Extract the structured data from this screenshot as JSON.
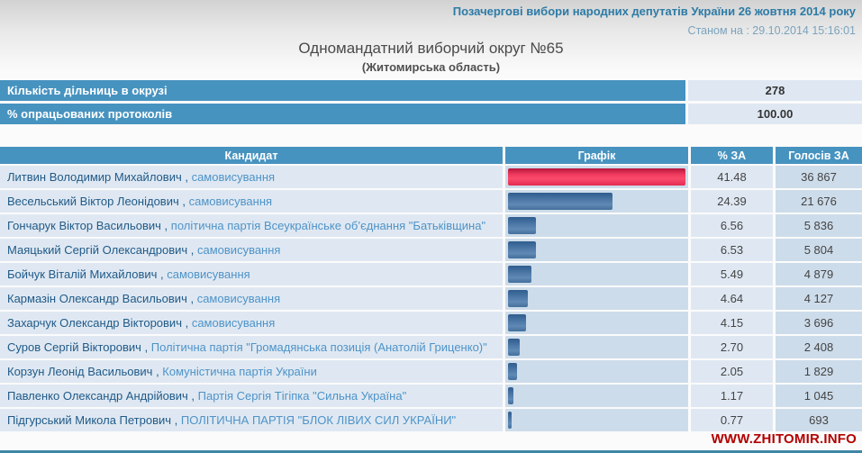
{
  "header": {
    "election_title": "Позачергові вибори народних депутатів України 26 жовтня 2014 року",
    "as_of": "Станом на : 29.10.2014 15:16:01",
    "district_title": "Одномандатний виборчий округ №65",
    "region_subtitle": "(Житомирська область)"
  },
  "summary": {
    "rows": [
      {
        "label": "Кількість дільниць в окрузі",
        "value": "278"
      },
      {
        "label": "% опрацьованих протоколів",
        "value": "100.00"
      }
    ]
  },
  "results_table": {
    "columns": [
      "Кандидат",
      "Графік",
      "% ЗА",
      "Голосів ЗА"
    ],
    "separator": " , ",
    "max_percent": 41.48,
    "rows": [
      {
        "name": "Литвин Володимир Михайлович",
        "party": "самовисування",
        "percent": "41.48",
        "votes": "36 867",
        "bar_color": "red"
      },
      {
        "name": "Весельський Віктор Леонідович",
        "party": "самовисування",
        "percent": "24.39",
        "votes": "21 676",
        "bar_color": "blue"
      },
      {
        "name": "Гончарук Віктор Васильович",
        "party": "політична партія Всеукраїнське об’єднання \"Батьківщина\"",
        "percent": "6.56",
        "votes": "5 836",
        "bar_color": "blue"
      },
      {
        "name": "Маяцький Сергій Олександрович",
        "party": "самовисування",
        "percent": "6.53",
        "votes": "5 804",
        "bar_color": "blue"
      },
      {
        "name": "Бойчук Віталій Михайлович",
        "party": "самовисування",
        "percent": "5.49",
        "votes": "4 879",
        "bar_color": "blue"
      },
      {
        "name": "Кармазін Олександр Васильович",
        "party": "самовисування",
        "percent": "4.64",
        "votes": "4 127",
        "bar_color": "blue"
      },
      {
        "name": "Захарчук Олександр Вікторович",
        "party": "самовисування",
        "percent": "4.15",
        "votes": "3 696",
        "bar_color": "blue"
      },
      {
        "name": "Суров Сергій Вікторович",
        "party": "Політична партія \"Громадянська позиція (Анатолій Гриценко)\"",
        "percent": "2.70",
        "votes": "2 408",
        "bar_color": "blue"
      },
      {
        "name": "Корзун Леонід Васильович",
        "party": "Комуністична партія України",
        "percent": "2.05",
        "votes": "1 829",
        "bar_color": "blue"
      },
      {
        "name": "Павленко Олександр Андрійович",
        "party": "Партія Сергія Тігіпка \"Сильна Україна\"",
        "percent": "1.17",
        "votes": "1 045",
        "bar_color": "blue"
      },
      {
        "name": "Підгурський Микола Петрович",
        "party": "ПОЛІТИЧНА ПАРТІЯ \"БЛОК ЛІВИХ СИЛ УКРАЇНИ\"",
        "percent": "0.77",
        "votes": "693",
        "bar_color": "blue"
      }
    ]
  },
  "footer": {
    "watermark": "WWW.ZHITOMIR.INFO"
  },
  "colors": {
    "header_bar": "#4793c0",
    "cell_light": "#dfe8f2",
    "cell_medium": "#cddcea",
    "bar_red": "#e82c52",
    "bar_blue": "#44709b",
    "name_text": "#205a88",
    "party_text": "#4e93c8",
    "title_accent": "#2d7ba6",
    "as_of_text": "#7ba3bd",
    "watermark": "#b30000",
    "bottom_line": "#3f86a6"
  }
}
